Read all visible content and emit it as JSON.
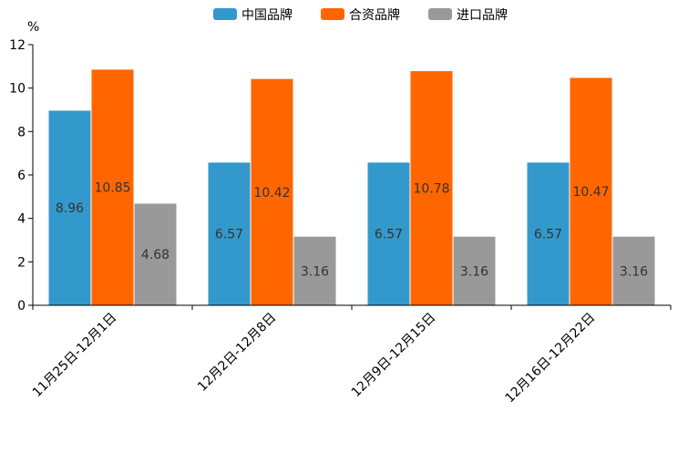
{
  "chart_data": {
    "type": "bar",
    "unit_label": "%",
    "categories": [
      "11月25日-12月1日",
      "12月2日-12月8日",
      "12月9日-12月15日",
      "12月16日-12月22日"
    ],
    "series": [
      {
        "name": "中国品牌",
        "color": "#3399cc",
        "values": [
          8.96,
          6.57,
          6.57,
          6.57
        ],
        "labels": [
          "8.96",
          "6.57",
          "6.57",
          "6.57"
        ]
      },
      {
        "name": "合资品牌",
        "color": "#ff6600",
        "values": [
          10.85,
          10.42,
          10.78,
          10.47
        ],
        "labels": [
          "10.85",
          "10.42",
          "10.78",
          "10.47"
        ]
      },
      {
        "name": "进口品牌",
        "color": "#999999",
        "values": [
          4.68,
          3.16,
          3.16,
          3.16
        ],
        "labels": [
          "4.68",
          "3.16",
          "3.16",
          "3.16"
        ]
      }
    ],
    "ylim": [
      0,
      12
    ],
    "yticks": [
      "0",
      "2",
      "4",
      "6",
      "8",
      "10",
      "12"
    ],
    "legend_position": "top-center",
    "grid": false
  }
}
